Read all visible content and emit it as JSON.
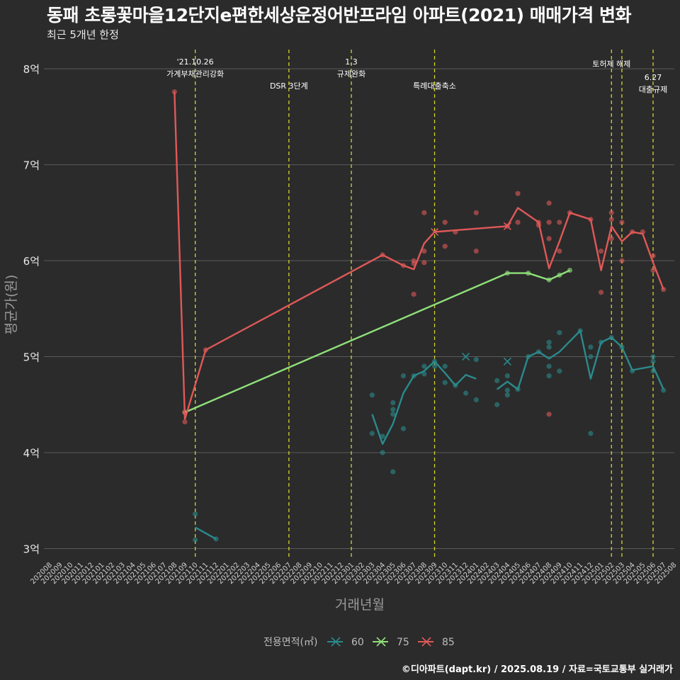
{
  "title": "동패 초롱꽃마을12단지e편한세상운정어반프라임 아파트(2021) 매매가격 변화",
  "subtitle": "최근 5개년 한정",
  "caption": "©디아파트(dapt.kr) / 2025.08.19 / 자료=국토교통부 실거래가",
  "colors": {
    "background": "#2b2b2b",
    "grid": "#5a5a5a",
    "event_line": "#d4d42a",
    "s60": "#2a8a8c",
    "s75": "#8fe07a",
    "s85": "#e05858"
  },
  "chart_data": {
    "type": "line",
    "xlabel": "거래년월",
    "ylabel": "평균가(원)",
    "ylim": [
      2.9,
      8.2
    ],
    "yticks": [
      3,
      4,
      5,
      6,
      7,
      8
    ],
    "ytick_labels": [
      "3억",
      "4억",
      "5억",
      "6억",
      "7억",
      "8억"
    ],
    "xticks": [
      "202008",
      "202009",
      "202010",
      "202011",
      "202012",
      "202101",
      "202102",
      "202103",
      "202104",
      "202105",
      "202106",
      "202107",
      "202108",
      "202109",
      "202110",
      "202111",
      "202112",
      "202201",
      "202202",
      "202203",
      "202204",
      "202205",
      "202206",
      "202207",
      "202208",
      "202209",
      "202210",
      "202211",
      "202212",
      "202301",
      "202302",
      "202303",
      "202304",
      "202305",
      "202306",
      "202307",
      "202308",
      "202309",
      "202310",
      "202311",
      "202312",
      "202401",
      "202402",
      "202403",
      "202404",
      "202405",
      "202406",
      "202407",
      "202408",
      "202409",
      "202410",
      "202411",
      "202412",
      "202501",
      "202502",
      "202503",
      "202504",
      "202505",
      "202506",
      "202507",
      "202508"
    ],
    "legend_title": "전용면적(㎡)",
    "series": [
      {
        "name": "60",
        "color_key": "s60",
        "segments": [
          [
            [
              "202110",
              3.22
            ],
            [
              "202112",
              3.1
            ]
          ],
          [
            [
              "202303",
              4.4
            ],
            [
              "202304",
              4.09
            ],
            [
              "202305",
              4.3
            ],
            [
              "202306",
              4.62
            ],
            [
              "202307",
              4.8
            ],
            [
              "202308",
              4.85
            ],
            [
              "202309",
              4.95
            ],
            [
              "202310",
              4.83
            ],
            [
              "202311",
              4.7
            ],
            [
              "202312",
              4.81
            ],
            [
              "202401",
              4.77
            ]
          ],
          [
            [
              "202403",
              4.66
            ],
            [
              "202404",
              4.74
            ],
            [
              "202405",
              4.66
            ],
            [
              "202406",
              5.0
            ],
            [
              "202407",
              5.05
            ],
            [
              "202408",
              4.98
            ],
            [
              "202409",
              5.05
            ],
            [
              "202411",
              5.27
            ],
            [
              "202412",
              4.77
            ],
            [
              "202501",
              5.15
            ],
            [
              "202502",
              5.2
            ],
            [
              "202503",
              5.1
            ],
            [
              "202504",
              4.86
            ],
            [
              "202506",
              4.9
            ],
            [
              "202507",
              4.66
            ]
          ]
        ],
        "points": [
          [
            "202110",
            3.36
          ],
          [
            "202110",
            3.09
          ],
          [
            "202112",
            3.1
          ],
          [
            "202303",
            4.6
          ],
          [
            "202303",
            4.2
          ],
          [
            "202304",
            4.17
          ],
          [
            "202304",
            4.0
          ],
          [
            "202305",
            4.52
          ],
          [
            "202305",
            4.45
          ],
          [
            "202305",
            4.4
          ],
          [
            "202305",
            3.8
          ],
          [
            "202306",
            4.8
          ],
          [
            "202306",
            4.25
          ],
          [
            "202307",
            4.8
          ],
          [
            "202308",
            4.9
          ],
          [
            "202308",
            4.82
          ],
          [
            "202309",
            4.95
          ],
          [
            "202309",
            4.9
          ],
          [
            "202310",
            4.9
          ],
          [
            "202310",
            4.73
          ],
          [
            "202311",
            4.7
          ],
          [
            "202312",
            4.62
          ],
          [
            "202401",
            4.97
          ],
          [
            "202401",
            4.55
          ],
          [
            "202403",
            4.75
          ],
          [
            "202403",
            4.5
          ],
          [
            "202404",
            4.8
          ],
          [
            "202404",
            4.65
          ],
          [
            "202404",
            4.6
          ],
          [
            "202405",
            4.66
          ],
          [
            "202406",
            5.0
          ],
          [
            "202407",
            5.05
          ],
          [
            "202408",
            5.15
          ],
          [
            "202408",
            5.1
          ],
          [
            "202408",
            4.9
          ],
          [
            "202408",
            4.8
          ],
          [
            "202409",
            5.25
          ],
          [
            "202409",
            4.85
          ],
          [
            "202411",
            5.27
          ],
          [
            "202412",
            5.1
          ],
          [
            "202412",
            5.0
          ],
          [
            "202412",
            4.2
          ],
          [
            "202501",
            5.15
          ],
          [
            "202502",
            5.2
          ],
          [
            "202503",
            5.1
          ],
          [
            "202504",
            4.85
          ],
          [
            "202506",
            5.0
          ],
          [
            "202506",
            4.95
          ],
          [
            "202506",
            4.85
          ],
          [
            "202507",
            4.65
          ]
        ],
        "markers_x": [
          [
            "202312",
            5.0
          ],
          [
            "202404",
            4.95
          ]
        ]
      },
      {
        "name": "75",
        "color_key": "s75",
        "segments": [
          [
            [
              "202109",
              4.42
            ],
            [
              "202404",
              5.87
            ],
            [
              "202406",
              5.87
            ],
            [
              "202408",
              5.8
            ],
            [
              "202409",
              5.85
            ],
            [
              "202410",
              5.9
            ]
          ]
        ],
        "points": [
          [
            "202109",
            4.42
          ],
          [
            "202404",
            5.87
          ],
          [
            "202406",
            5.87
          ],
          [
            "202408",
            5.8
          ],
          [
            "202409",
            5.85
          ],
          [
            "202410",
            5.9
          ]
        ],
        "markers_x": []
      },
      {
        "name": "85",
        "color_key": "s85",
        "segments": [
          [
            [
              "202108",
              7.76
            ],
            [
              "202109",
              4.35
            ],
            [
              "202111",
              5.07
            ],
            [
              "202304",
              6.06
            ],
            [
              "202306",
              5.95
            ],
            [
              "202307",
              5.91
            ],
            [
              "202308",
              6.18
            ],
            [
              "202309",
              6.3
            ],
            [
              "202404",
              6.36
            ],
            [
              "202405",
              6.55
            ],
            [
              "202407",
              6.4
            ],
            [
              "202408",
              5.92
            ],
            [
              "202409",
              6.2
            ],
            [
              "202410",
              6.5
            ],
            [
              "202412",
              6.43
            ],
            [
              "202501",
              5.9
            ],
            [
              "202502",
              6.36
            ],
            [
              "202503",
              6.2
            ],
            [
              "202504",
              6.3
            ],
            [
              "202505",
              6.28
            ],
            [
              "202506",
              5.98
            ],
            [
              "202507",
              5.7
            ]
          ]
        ],
        "points": [
          [
            "202108",
            7.76
          ],
          [
            "202109",
            4.42
          ],
          [
            "202109",
            4.32
          ],
          [
            "202111",
            5.07
          ],
          [
            "202304",
            6.06
          ],
          [
            "202306",
            5.95
          ],
          [
            "202307",
            6.0
          ],
          [
            "202307",
            5.97
          ],
          [
            "202307",
            5.65
          ],
          [
            "202308",
            6.5
          ],
          [
            "202308",
            6.1
          ],
          [
            "202308",
            5.98
          ],
          [
            "202310",
            6.4
          ],
          [
            "202310",
            6.15
          ],
          [
            "202311",
            6.3
          ],
          [
            "202401",
            6.5
          ],
          [
            "202401",
            6.1
          ],
          [
            "202404",
            6.36
          ],
          [
            "202405",
            6.7
          ],
          [
            "202405",
            6.4
          ],
          [
            "202407",
            6.4
          ],
          [
            "202407",
            6.37
          ],
          [
            "202408",
            6.6
          ],
          [
            "202408",
            6.4
          ],
          [
            "202408",
            6.23
          ],
          [
            "202408",
            4.4
          ],
          [
            "202409",
            6.4
          ],
          [
            "202409",
            6.1
          ],
          [
            "202410",
            6.5
          ],
          [
            "202412",
            6.43
          ],
          [
            "202501",
            6.1
          ],
          [
            "202501",
            5.67
          ],
          [
            "202502",
            6.5
          ],
          [
            "202502",
            6.43
          ],
          [
            "202502",
            6.23
          ],
          [
            "202503",
            6.4
          ],
          [
            "202503",
            6.0
          ],
          [
            "202504",
            6.3
          ],
          [
            "202505",
            6.3
          ],
          [
            "202506",
            6.05
          ],
          [
            "202506",
            5.9
          ],
          [
            "202507",
            5.7
          ]
        ],
        "markers_x": [
          [
            "202309",
            6.3
          ],
          [
            "202404",
            6.36
          ]
        ]
      }
    ],
    "events": [
      {
        "x": "202110",
        "lines": [
          "'21.10.26",
          "가계부채관리강화"
        ],
        "level": 1
      },
      {
        "x": "202207",
        "lines": [
          "DSR 3단계"
        ],
        "level": 2
      },
      {
        "x": "202301",
        "lines": [
          "1.3",
          "규제완화"
        ],
        "level": 1
      },
      {
        "x": "202309",
        "lines": [
          "특례대출축소"
        ],
        "level": 2
      },
      {
        "x": "202502",
        "lines": [
          "토허제 해제"
        ],
        "level": 1
      },
      {
        "x": "202503",
        "lines": [],
        "level": 1
      },
      {
        "x": "202506",
        "lines": [
          "6.27",
          "대출규제"
        ],
        "level": 3
      }
    ]
  }
}
